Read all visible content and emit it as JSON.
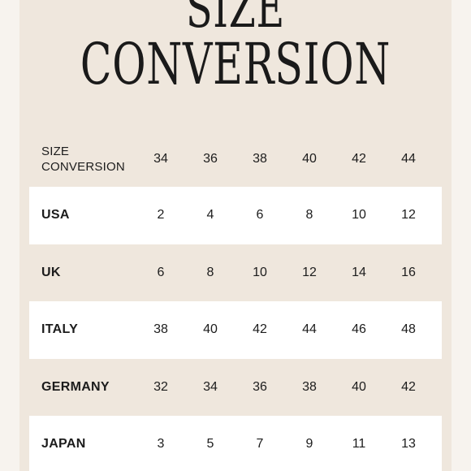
{
  "title": {
    "line1": "SIZE",
    "line2": "CONVERSION"
  },
  "table": {
    "corner_label_line1": "SIZE",
    "corner_label_line2": "CONVERSION",
    "columns": [
      "34",
      "36",
      "38",
      "40",
      "42",
      "44"
    ],
    "rows": [
      {
        "label": "USA",
        "values": [
          "2",
          "4",
          "6",
          "8",
          "10",
          "12"
        ]
      },
      {
        "label": "UK",
        "values": [
          "6",
          "8",
          "10",
          "12",
          "14",
          "16"
        ]
      },
      {
        "label": "ITALY",
        "values": [
          "38",
          "40",
          "42",
          "44",
          "46",
          "48"
        ]
      },
      {
        "label": "GERMANY",
        "values": [
          "32",
          "34",
          "36",
          "38",
          "40",
          "42"
        ]
      },
      {
        "label": "JAPAN",
        "values": [
          "3",
          "5",
          "7",
          "9",
          "11",
          "13"
        ]
      }
    ]
  },
  "colors": {
    "page_background": "#f7f3ee",
    "card_background": "#efe7dd",
    "band_background": "#ffffff",
    "text": "#1c1c1c"
  }
}
